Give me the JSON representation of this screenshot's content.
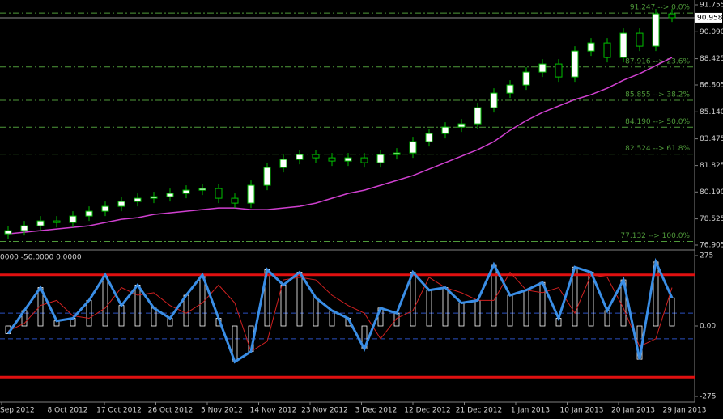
{
  "chart_data": [
    {
      "type": "candlestick",
      "open": [
        77.6,
        77.8,
        78.1,
        78.4,
        78.3,
        78.7,
        79.0,
        79.3,
        79.6,
        79.8,
        79.9,
        80.1,
        80.3,
        80.4,
        79.8,
        79.5,
        80.6,
        81.7,
        82.2,
        82.5,
        82.3,
        82.1,
        82.3,
        82.0,
        82.5,
        82.6,
        83.3,
        83.8,
        84.2,
        84.4,
        85.4,
        86.3,
        86.8,
        87.6,
        88.1,
        87.3,
        88.9,
        89.4,
        88.5,
        90.0,
        89.2,
        91.2
      ],
      "high": [
        78.1,
        78.4,
        78.7,
        78.7,
        79.0,
        79.3,
        79.6,
        79.9,
        80.1,
        80.2,
        80.4,
        80.6,
        80.7,
        80.7,
        80.1,
        80.9,
        82.0,
        82.5,
        82.8,
        82.8,
        82.6,
        82.6,
        82.6,
        82.8,
        82.9,
        83.6,
        84.1,
        84.5,
        84.7,
        85.7,
        86.6,
        87.1,
        87.9,
        88.4,
        88.4,
        89.2,
        89.7,
        89.7,
        90.3,
        90.3,
        91.5,
        91.5
      ],
      "low": [
        77.3,
        77.5,
        77.8,
        78.0,
        78.0,
        78.4,
        78.7,
        79.0,
        79.3,
        79.5,
        79.6,
        79.8,
        80.0,
        79.5,
        79.2,
        79.2,
        80.3,
        81.4,
        81.9,
        82.0,
        81.8,
        81.8,
        81.7,
        81.7,
        82.2,
        82.3,
        83.0,
        83.5,
        83.9,
        84.1,
        85.1,
        86.0,
        86.5,
        87.3,
        87.0,
        87.0,
        88.6,
        88.2,
        88.2,
        88.9,
        88.9,
        90.7
      ],
      "close": [
        77.8,
        78.1,
        78.4,
        78.3,
        78.7,
        79.0,
        79.3,
        79.6,
        79.8,
        79.9,
        80.1,
        80.3,
        80.4,
        79.8,
        79.5,
        80.6,
        81.7,
        82.2,
        82.5,
        82.3,
        82.1,
        82.3,
        82.0,
        82.5,
        82.6,
        83.3,
        83.8,
        84.2,
        84.4,
        85.4,
        86.3,
        86.8,
        87.6,
        88.1,
        87.3,
        88.9,
        89.4,
        88.5,
        90.0,
        89.2,
        91.2,
        90.958
      ],
      "up_color": "#ffffff",
      "down_color": "#000000",
      "wick_color": "#00c000",
      "moving_average": {
        "color": "#d040d0",
        "values": [
          77.6,
          77.7,
          77.8,
          77.9,
          78.0,
          78.1,
          78.3,
          78.5,
          78.6,
          78.8,
          78.9,
          79.0,
          79.1,
          79.2,
          79.2,
          79.1,
          79.1,
          79.2,
          79.3,
          79.5,
          79.8,
          80.1,
          80.3,
          80.6,
          80.9,
          81.2,
          81.6,
          82.0,
          82.4,
          82.8,
          83.3,
          84.0,
          84.6,
          85.1,
          85.5,
          85.9,
          86.2,
          86.6,
          87.1,
          87.5,
          88.0,
          88.5
        ]
      },
      "fib_color": "#4f9a3a",
      "fib_levels": [
        {
          "value": 91.247,
          "label": "91.247 --> 0.0%"
        },
        {
          "value": 87.916,
          "label": "87.916 --> 23.6%"
        },
        {
          "value": 85.855,
          "label": "85.855 --> 38.2%"
        },
        {
          "value": 84.19,
          "label": "84.190 --> 50.0%"
        },
        {
          "value": 82.524,
          "label": "82.524 --> 61.8%"
        },
        {
          "value": 77.132,
          "label": "77.132 --> 100.0%"
        }
      ],
      "last_price": {
        "value": 90.958,
        "label": "90.958"
      },
      "ylim": [
        76.905,
        91.755
      ],
      "yticks": [
        91.755,
        {
          "value": 90.09,
          "label": "90.090"
        },
        88.425,
        86.805,
        {
          "value": 85.14,
          "label": "85.140"
        },
        83.475,
        81.825,
        {
          "value": 80.19,
          "label": "80.190"
        },
        78.525,
        76.905
      ],
      "x_labels": [
        "Sep 2012",
        "8 Oct 2012",
        "17 Oct 2012",
        "26 Oct 2012",
        "5 Nov 2012",
        "14 Nov 2012",
        "23 Nov 2012",
        "3 Dec 2012",
        "12 Dec 2012",
        "21 Dec 2012",
        "1 Jan 2013",
        "10 Jan 2013",
        "20 Jan 2013",
        "29 Jan 2013"
      ]
    },
    {
      "type": "oscillator",
      "header": "0000 -50.0000 0.0000",
      "series": [
        {
          "color": "#3a8ee6",
          "values": [
            -30,
            60,
            150,
            20,
            30,
            100,
            200,
            80,
            160,
            70,
            30,
            120,
            200,
            30,
            -140,
            -100,
            220,
            160,
            210,
            110,
            60,
            30,
            -90,
            70,
            50,
            210,
            140,
            150,
            90,
            100,
            240,
            120,
            140,
            170,
            30,
            230,
            210,
            60,
            180,
            -130,
            250,
            110
          ]
        },
        {
          "color": "#d02020",
          "values": [
            -20,
            10,
            80,
            100,
            40,
            30,
            70,
            150,
            120,
            130,
            80,
            50,
            90,
            160,
            90,
            -100,
            -60,
            180,
            190,
            180,
            120,
            80,
            50,
            -50,
            30,
            60,
            190,
            150,
            130,
            100,
            100,
            210,
            140,
            130,
            150,
            50,
            200,
            190,
            70,
            -80,
            -50,
            150
          ]
        }
      ],
      "histogram_color": "#ffffff",
      "bound_levels": {
        "color": "#e01010",
        "values": [
          200,
          -200
        ]
      },
      "dashed_levels": {
        "color": "#2a50c0",
        "values": [
          50,
          -50
        ]
      },
      "ylim": [
        -275,
        275
      ],
      "yticks": [
        275,
        {
          "value": 0,
          "label": "0.00"
        },
        -275
      ]
    }
  ]
}
